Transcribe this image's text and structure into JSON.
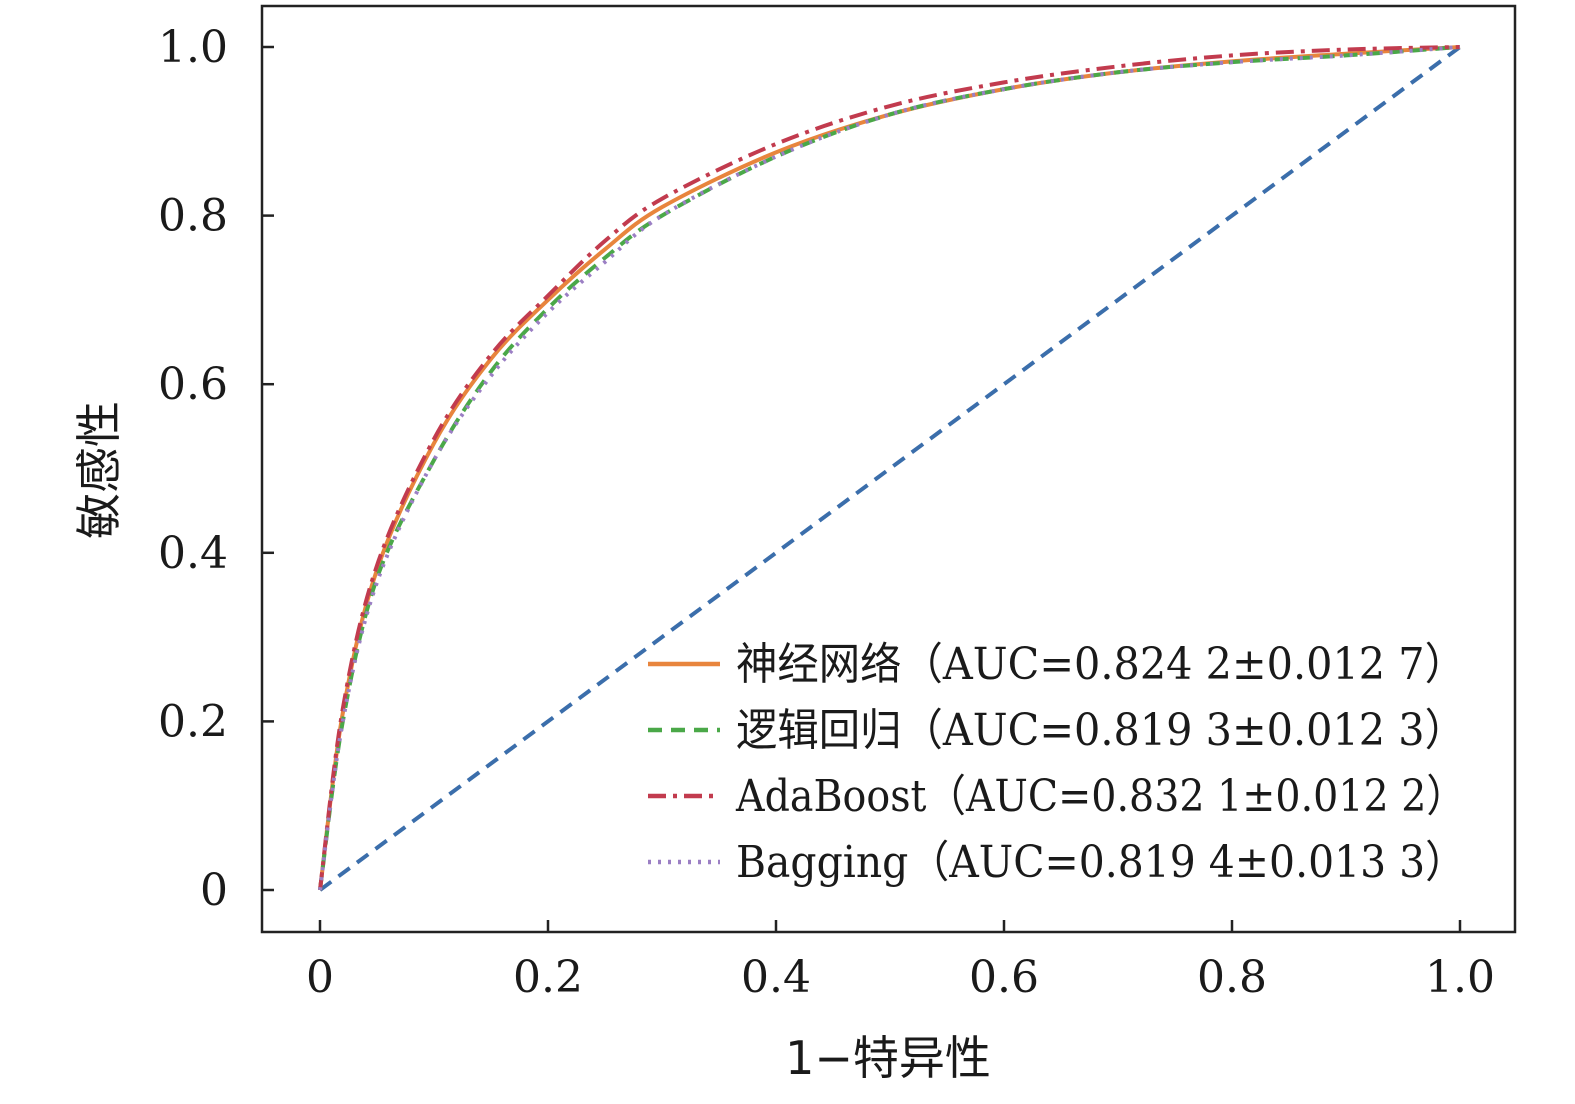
{
  "chart_data": {
    "type": "line",
    "title": "",
    "xlabel": "1−特异性",
    "ylabel": "敏感性",
    "xlim": [
      0,
      1
    ],
    "ylim": [
      0,
      1
    ],
    "x_ticks": [
      0,
      0.2,
      0.4,
      0.6,
      0.8,
      1.0
    ],
    "x_tick_labels": [
      "0",
      "0.2",
      "0.4",
      "0.6",
      "0.8",
      "1.0"
    ],
    "y_ticks": [
      0,
      0.2,
      0.4,
      0.6,
      0.8,
      1.0
    ],
    "y_tick_labels": [
      "0",
      "0.2",
      "0.4",
      "0.6",
      "0.8",
      "1.0"
    ],
    "grid": false,
    "legend_position": "bottom-right",
    "series": [
      {
        "name": "神经网络（AUC=0.824 2±0.012 7）",
        "color": "#e8853d",
        "dash": "solid",
        "x": [
          0,
          0.02,
          0.05,
          0.1,
          0.15,
          0.2,
          0.25,
          0.3,
          0.4,
          0.5,
          0.6,
          0.7,
          0.8,
          0.9,
          1.0
        ],
        "y": [
          0,
          0.21,
          0.38,
          0.53,
          0.63,
          0.7,
          0.76,
          0.81,
          0.875,
          0.92,
          0.95,
          0.97,
          0.983,
          0.992,
          1.0
        ]
      },
      {
        "name": "逻辑回归（AUC=0.819 3±0.012 3）",
        "color": "#4aa848",
        "dash": "dashed",
        "x": [
          0,
          0.02,
          0.05,
          0.1,
          0.15,
          0.2,
          0.25,
          0.3,
          0.4,
          0.5,
          0.6,
          0.7,
          0.8,
          0.9,
          1.0
        ],
        "y": [
          0,
          0.2,
          0.37,
          0.51,
          0.615,
          0.69,
          0.75,
          0.8,
          0.87,
          0.92,
          0.95,
          0.97,
          0.982,
          0.99,
          1.0
        ]
      },
      {
        "name": "AdaBoost（AUC=0.832 1±0.012 2）",
        "color": "#c23b4e",
        "dash": "dashdot",
        "x": [
          0,
          0.02,
          0.05,
          0.1,
          0.15,
          0.2,
          0.25,
          0.3,
          0.4,
          0.5,
          0.6,
          0.7,
          0.8,
          0.9,
          1.0
        ],
        "y": [
          0,
          0.215,
          0.385,
          0.535,
          0.635,
          0.705,
          0.77,
          0.82,
          0.885,
          0.93,
          0.958,
          0.977,
          0.99,
          0.997,
          1.0
        ]
      },
      {
        "name": "Bagging（AUC=0.819 4±0.013 3）",
        "color": "#9b7fc4",
        "dash": "dotted",
        "x": [
          0,
          0.02,
          0.05,
          0.1,
          0.15,
          0.2,
          0.25,
          0.3,
          0.4,
          0.5,
          0.6,
          0.7,
          0.8,
          0.9,
          1.0
        ],
        "y": [
          0,
          0.2,
          0.365,
          0.51,
          0.61,
          0.685,
          0.745,
          0.8,
          0.87,
          0.92,
          0.95,
          0.97,
          0.982,
          0.99,
          1.0
        ]
      },
      {
        "name": "",
        "color": "#3b6eab",
        "dash": "dashed",
        "x": [
          0,
          1
        ],
        "y": [
          0,
          1
        ]
      }
    ]
  }
}
